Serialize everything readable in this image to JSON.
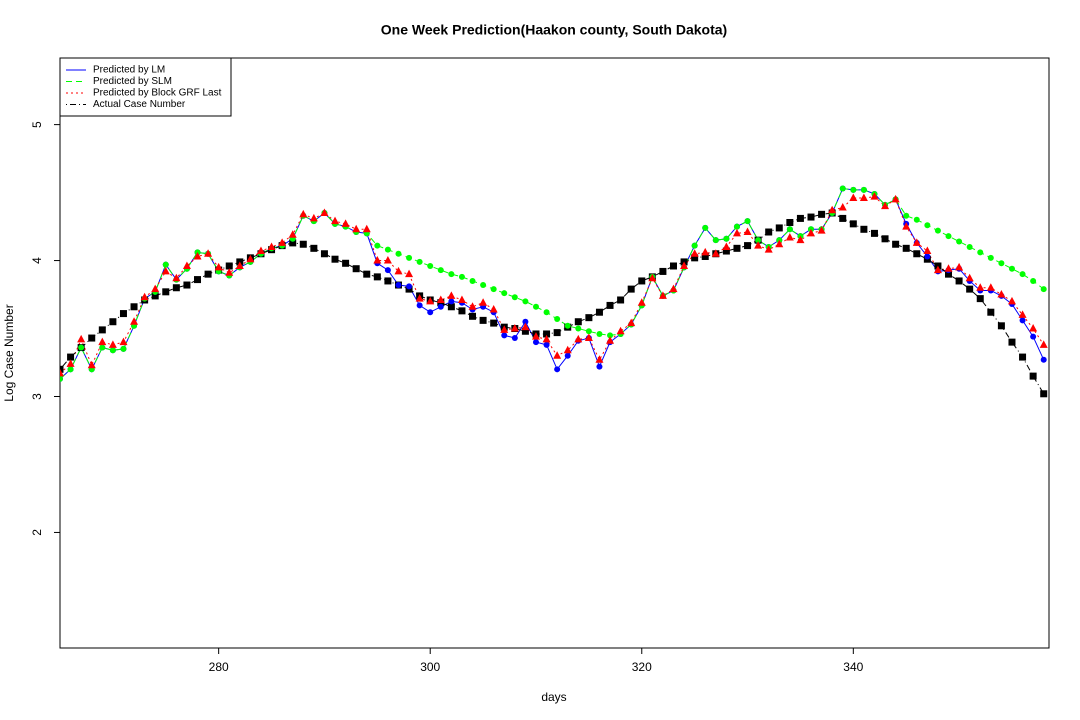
{
  "chart_data": {
    "type": "line",
    "title": "One Week Prediction(Haakon county, South Dakota)",
    "x_label": "days",
    "y_label": "Log Case Number",
    "x": [
      265,
      266,
      267,
      268,
      269,
      270,
      271,
      272,
      273,
      274,
      275,
      276,
      277,
      278,
      279,
      280,
      281,
      282,
      283,
      284,
      285,
      286,
      287,
      288,
      289,
      290,
      291,
      292,
      293,
      294,
      295,
      296,
      297,
      298,
      299,
      300,
      301,
      302,
      303,
      304,
      305,
      306,
      307,
      308,
      309,
      310,
      311,
      312,
      313,
      314,
      315,
      316,
      317,
      318,
      319,
      320,
      321,
      322,
      323,
      324,
      325,
      326,
      327,
      328,
      329,
      330,
      331,
      332,
      333,
      334,
      335,
      336,
      337,
      338,
      339,
      340,
      341,
      342,
      343,
      344,
      345,
      346,
      347,
      348,
      349,
      350,
      351,
      352,
      353,
      354,
      355,
      356,
      357,
      358
    ],
    "xlim": [
      265,
      358.5
    ],
    "xticks": [
      280,
      300,
      320,
      340
    ],
    "ylim": [
      1.15,
      5.49
    ],
    "yticks": [
      2,
      3,
      4,
      5
    ],
    "legend_position": "top-left",
    "series": [
      {
        "name": "Predicted by LM",
        "color": "#0000ff",
        "dash": "solid",
        "marker": "circle",
        "values": [
          3.13,
          3.2,
          3.36,
          3.2,
          3.36,
          3.34,
          3.35,
          3.52,
          3.72,
          3.77,
          3.97,
          3.86,
          3.94,
          4.06,
          4.05,
          3.92,
          3.89,
          3.95,
          3.99,
          4.05,
          4.09,
          4.11,
          4.16,
          4.33,
          4.29,
          4.35,
          4.27,
          4.25,
          4.21,
          4.2,
          3.98,
          3.93,
          3.82,
          3.81,
          3.67,
          3.62,
          3.66,
          3.7,
          3.69,
          3.64,
          3.66,
          3.62,
          3.45,
          3.43,
          3.55,
          3.4,
          3.38,
          3.2,
          3.3,
          3.41,
          3.43,
          3.22,
          3.4,
          3.46,
          3.53,
          3.67,
          3.88,
          3.74,
          3.78,
          3.95,
          4.11,
          4.24,
          4.15,
          4.16,
          4.25,
          4.29,
          4.15,
          4.1,
          4.15,
          4.23,
          4.18,
          4.23,
          4.23,
          4.35,
          4.53,
          4.52,
          4.52,
          4.49,
          4.41,
          4.45,
          4.27,
          4.13,
          4.03,
          3.92,
          3.93,
          3.94,
          3.85,
          3.78,
          3.78,
          3.74,
          3.68,
          3.56,
          3.44,
          3.27
        ]
      },
      {
        "name": "Predicted by SLM",
        "color": "#00ff00",
        "dash": "dashed",
        "marker": "circle",
        "values": [
          3.13,
          3.2,
          3.36,
          3.2,
          3.36,
          3.34,
          3.35,
          3.52,
          3.72,
          3.77,
          3.97,
          3.86,
          3.94,
          4.06,
          4.05,
          3.92,
          3.89,
          3.95,
          3.99,
          4.05,
          4.09,
          4.11,
          4.16,
          4.33,
          4.29,
          4.35,
          4.27,
          4.25,
          4.21,
          4.2,
          4.11,
          4.08,
          4.05,
          4.02,
          3.99,
          3.96,
          3.93,
          3.9,
          3.88,
          3.85,
          3.82,
          3.79,
          3.76,
          3.73,
          3.7,
          3.66,
          3.62,
          3.57,
          3.52,
          3.5,
          3.48,
          3.46,
          3.45,
          3.46,
          3.53,
          3.67,
          3.88,
          3.74,
          3.78,
          3.95,
          4.11,
          4.24,
          4.15,
          4.16,
          4.25,
          4.29,
          4.15,
          4.1,
          4.15,
          4.23,
          4.18,
          4.23,
          4.23,
          4.35,
          4.53,
          4.52,
          4.52,
          4.49,
          4.41,
          4.45,
          4.33,
          4.3,
          4.26,
          4.22,
          4.18,
          4.14,
          4.1,
          4.06,
          4.02,
          3.98,
          3.94,
          3.9,
          3.85,
          3.79
        ]
      },
      {
        "name": "Predicted by Block GRF Last",
        "color": "#ff0000",
        "dash": "dotted",
        "marker": "triangle",
        "values": [
          3.17,
          3.24,
          3.42,
          3.23,
          3.4,
          3.38,
          3.4,
          3.55,
          3.73,
          3.79,
          3.92,
          3.87,
          3.96,
          4.03,
          4.05,
          3.95,
          3.91,
          3.96,
          4.01,
          4.07,
          4.1,
          4.13,
          4.19,
          4.34,
          4.31,
          4.35,
          4.29,
          4.27,
          4.23,
          4.23,
          4.0,
          4.0,
          3.92,
          3.9,
          3.72,
          3.7,
          3.71,
          3.74,
          3.71,
          3.66,
          3.69,
          3.64,
          3.49,
          3.5,
          3.51,
          3.44,
          3.42,
          3.3,
          3.34,
          3.42,
          3.43,
          3.27,
          3.41,
          3.48,
          3.54,
          3.69,
          3.87,
          3.74,
          3.79,
          3.96,
          4.05,
          4.06,
          4.05,
          4.1,
          4.2,
          4.21,
          4.11,
          4.08,
          4.12,
          4.17,
          4.15,
          4.2,
          4.22,
          4.37,
          4.39,
          4.46,
          4.46,
          4.47,
          4.4,
          4.45,
          4.25,
          4.13,
          4.07,
          3.93,
          3.94,
          3.95,
          3.87,
          3.8,
          3.8,
          3.75,
          3.7,
          3.6,
          3.5,
          3.38
        ]
      },
      {
        "name": "Actual Case Number",
        "color": "#000000",
        "dash": "dotdash",
        "marker": "square",
        "values": [
          3.2,
          3.29,
          3.36,
          3.43,
          3.49,
          3.55,
          3.61,
          3.66,
          3.71,
          3.74,
          3.77,
          3.8,
          3.82,
          3.86,
          3.9,
          3.93,
          3.96,
          3.99,
          4.02,
          4.05,
          4.08,
          4.11,
          4.13,
          4.12,
          4.09,
          4.05,
          4.01,
          3.98,
          3.94,
          3.9,
          3.88,
          3.85,
          3.82,
          3.79,
          3.74,
          3.71,
          3.69,
          3.66,
          3.63,
          3.59,
          3.56,
          3.54,
          3.51,
          3.5,
          3.48,
          3.46,
          3.46,
          3.47,
          3.51,
          3.55,
          3.58,
          3.62,
          3.67,
          3.71,
          3.79,
          3.85,
          3.88,
          3.92,
          3.96,
          3.99,
          4.02,
          4.03,
          4.05,
          4.07,
          4.09,
          4.11,
          4.15,
          4.21,
          4.24,
          4.28,
          4.31,
          4.32,
          4.34,
          4.35,
          4.31,
          4.27,
          4.23,
          4.2,
          4.16,
          4.12,
          4.09,
          4.05,
          4.01,
          3.96,
          3.9,
          3.85,
          3.79,
          3.72,
          3.62,
          3.52,
          3.4,
          3.29,
          3.15,
          3.02
        ]
      }
    ]
  }
}
